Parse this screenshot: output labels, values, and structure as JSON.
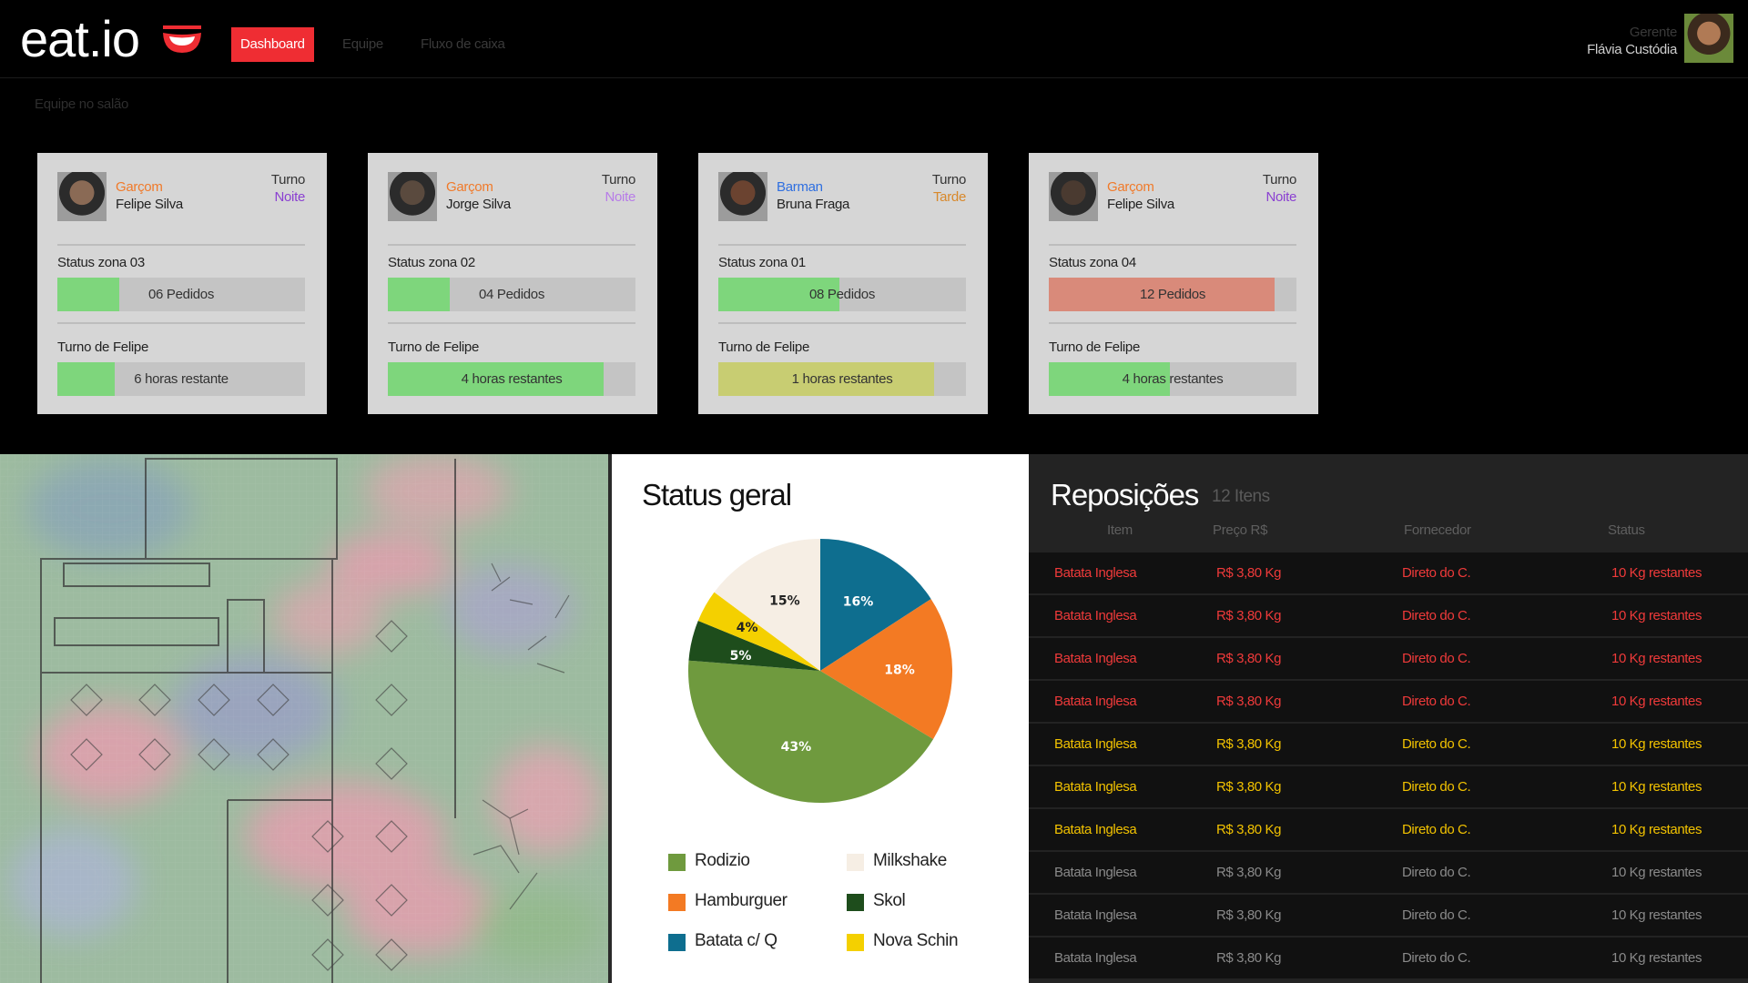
{
  "header": {
    "logo": "eat.io",
    "nav": [
      "Dashboard",
      "Equipe",
      "Fluxo de caixa"
    ],
    "user_role": "Gerente",
    "user_name": "Flávia Custódia"
  },
  "team_section_label": "Equipe no salão",
  "cards": [
    {
      "role": "Garçom",
      "role_color": "#f07a2a",
      "name": "Felipe Silva",
      "turno_label": "Turno",
      "turno": "Noite",
      "turno_color": "#8a3fd1",
      "zona_label": "Status zona 03",
      "pedidos": "06 Pedidos",
      "pedidos_fill": 0.25,
      "pedidos_color": "#7ed67c",
      "turno_de": "Turno de Felipe",
      "restante": "6 horas restante",
      "restante_fill": 0.23,
      "restante_color": "#7ed67c"
    },
    {
      "role": "Garçom",
      "role_color": "#f07a2a",
      "name": "Jorge Silva",
      "turno_label": "Turno",
      "turno": "Noite",
      "turno_color": "#b77be8",
      "zona_label": "Status zona 02",
      "pedidos": "04 Pedidos",
      "pedidos_fill": 0.25,
      "pedidos_color": "#7ed67c",
      "turno_de": "Turno de Felipe",
      "restante": "4 horas restantes",
      "restante_fill": 0.87,
      "restante_color": "#7ed67c"
    },
    {
      "role": "Barman",
      "role_color": "#2f6fe0",
      "name": "Bruna Fraga",
      "turno_label": "Turno",
      "turno": "Tarde",
      "turno_color": "#d8882a",
      "zona_label": "Status zona 01",
      "pedidos": "08 Pedidos",
      "pedidos_fill": 0.49,
      "pedidos_color": "#7ed67c",
      "turno_de": "Turno de Felipe",
      "restante": "1 horas restantes",
      "restante_fill": 0.87,
      "restante_color": "#c8cd72"
    },
    {
      "role": "Garçom",
      "role_color": "#f07a2a",
      "name": "Felipe Silva",
      "turno_label": "Turno",
      "turno": "Noite",
      "turno_color": "#8a3fd1",
      "zona_label": "Status zona 04",
      "pedidos": "12 Pedidos",
      "pedidos_fill": 0.91,
      "pedidos_color": "#d98a7a",
      "turno_de": "Turno de Felipe",
      "restante": "4 horas restantes",
      "restante_fill": 0.49,
      "restante_color": "#7ed67c"
    }
  ],
  "status_geral": {
    "title": "Status geral",
    "legend": [
      {
        "label": "Rodizio",
        "color": "#6f9a3e"
      },
      {
        "label": "Milkshake",
        "color": "#f6eee4"
      },
      {
        "label": "Hamburguer",
        "color": "#f37a23"
      },
      {
        "label": "Skol",
        "color": "#1e4d1c"
      },
      {
        "label": "Batata c/ Q",
        "color": "#0e6e8f"
      },
      {
        "label": "Nova Schin",
        "color": "#f4d000"
      }
    ]
  },
  "chart_data": {
    "type": "pie",
    "title": "Status geral",
    "slices": [
      {
        "label": "Batata c/ Q",
        "value": 16,
        "color": "#0e6e8f",
        "display": "16%"
      },
      {
        "label": "Hamburguer",
        "value": 18,
        "color": "#f37a23",
        "display": "18%"
      },
      {
        "label": "Rodizio",
        "value": 43,
        "color": "#6f9a3e",
        "display": "43%"
      },
      {
        "label": "Skol",
        "value": 5,
        "color": "#1e4d1c",
        "display": "5%"
      },
      {
        "label": "Nova Schin",
        "value": 4,
        "color": "#f4d000",
        "display": "4%"
      },
      {
        "label": "Milkshake",
        "value": 15,
        "color": "#f6eee4",
        "display": "15%"
      }
    ]
  },
  "reposicoes": {
    "title": "Reposições",
    "count": "12 Itens",
    "headers": [
      "Item",
      "Preço R$",
      "Fornecedor",
      "Status"
    ],
    "rows": [
      {
        "item": "Batata Inglesa",
        "preco": "R$ 3,80 Kg",
        "fornecedor": "Direto do C.",
        "status": "10 Kg restantes",
        "color": "#ef3a3a"
      },
      {
        "item": "Batata Inglesa",
        "preco": "R$ 3,80 Kg",
        "fornecedor": "Direto do C.",
        "status": "10 Kg restantes",
        "color": "#ef3a3a"
      },
      {
        "item": "Batata Inglesa",
        "preco": "R$ 3,80 Kg",
        "fornecedor": "Direto do C.",
        "status": "10 Kg restantes",
        "color": "#ef3a3a"
      },
      {
        "item": "Batata Inglesa",
        "preco": "R$ 3,80 Kg",
        "fornecedor": "Direto do C.",
        "status": "10 Kg restantes",
        "color": "#ef3a3a"
      },
      {
        "item": "Batata Inglesa",
        "preco": "R$ 3,80 Kg",
        "fornecedor": "Direto do C.",
        "status": "10 Kg restantes",
        "color": "#f2c200"
      },
      {
        "item": "Batata Inglesa",
        "preco": "R$ 3,80 Kg",
        "fornecedor": "Direto do C.",
        "status": "10 Kg restantes",
        "color": "#f2c200"
      },
      {
        "item": "Batata Inglesa",
        "preco": "R$ 3,80 Kg",
        "fornecedor": "Direto do C.",
        "status": "10 Kg restantes",
        "color": "#f2c200"
      },
      {
        "item": "Batata Inglesa",
        "preco": "R$ 3,80 Kg",
        "fornecedor": "Direto do C.",
        "status": "10 Kg restantes",
        "color": "#8a8a8a"
      },
      {
        "item": "Batata Inglesa",
        "preco": "R$ 3,80 Kg",
        "fornecedor": "Direto do C.",
        "status": "10 Kg restantes",
        "color": "#8a8a8a"
      },
      {
        "item": "Batata Inglesa",
        "preco": "R$ 3,80 Kg",
        "fornecedor": "Direto do C.",
        "status": "10 Kg restantes",
        "color": "#8a8a8a"
      }
    ]
  }
}
